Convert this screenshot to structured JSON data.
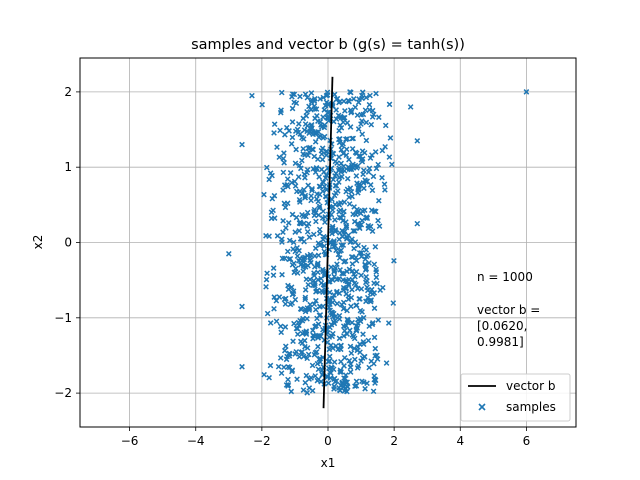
{
  "chart_data": {
    "type": "scatter",
    "title": "samples and vector b (g(s) = tanh(s))",
    "xlabel": "x1",
    "ylabel": "x2",
    "xlim": [
      -7.5,
      7.5
    ],
    "ylim": [
      -2.45,
      2.45
    ],
    "xticks": [
      -6,
      -4,
      -2,
      0,
      2,
      4,
      6
    ],
    "yticks": [
      -2,
      -1,
      0,
      1,
      2
    ],
    "grid": true,
    "colors": {
      "samples": "#1f77b4",
      "vector": "#000000"
    },
    "vector_b": {
      "name": "vector b",
      "x": [
        -0.135,
        0.135
      ],
      "y": [
        -2.2,
        2.2
      ]
    },
    "samples": {
      "name": "samples",
      "count": 1000,
      "x_range_core": [
        -2,
        2
      ],
      "y_range_core": [
        -2,
        2
      ],
      "outliers": [
        {
          "x": 6.0,
          "y": 2.0
        },
        {
          "x": -3.0,
          "y": -0.15
        },
        {
          "x": 2.7,
          "y": 0.25
        },
        {
          "x": -2.6,
          "y": 1.3
        },
        {
          "x": 2.7,
          "y": 1.35
        },
        {
          "x": -2.6,
          "y": -0.85
        },
        {
          "x": -2.6,
          "y": -1.65
        },
        {
          "x": 2.5,
          "y": 1.8
        },
        {
          "x": -2.3,
          "y": 1.95
        }
      ]
    },
    "annotation": [
      "n = 1000",
      "",
      "vector b =",
      "[0.0620,",
      "0.9981]"
    ],
    "legend": {
      "position": "lower-right",
      "entries": [
        "vector b",
        "samples"
      ]
    }
  }
}
